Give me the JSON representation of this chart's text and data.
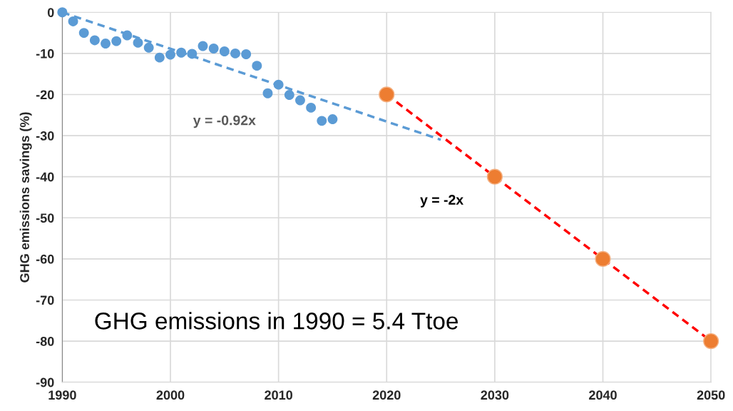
{
  "chart_data": {
    "type": "scatter",
    "ylabel": "GHG emissions savings (%)",
    "xlim": [
      1990,
      2050
    ],
    "xticks": [
      1990,
      2000,
      2010,
      2020,
      2030,
      2040,
      2050
    ],
    "ylim": [
      -90,
      0
    ],
    "yticks": [
      -90,
      -80,
      -70,
      -60,
      -50,
      -40,
      -30,
      -20,
      -10,
      0
    ],
    "grid": true,
    "legend": false,
    "series": [
      {
        "type": "line",
        "marker": "none",
        "color": "#5b9bd5",
        "line_style": "dashed",
        "x": [
          1990,
          2025
        ],
        "values": [
          0,
          -31
        ]
      },
      {
        "type": "line",
        "marker": "none",
        "color": "#ff0000",
        "line_style": "dashed",
        "x": [
          2020,
          2050
        ],
        "values": [
          -20,
          -80
        ]
      },
      {
        "marker": "circle",
        "color": "#5b9bd5",
        "x": [
          1990,
          1991,
          1992,
          1993,
          1994,
          1995,
          1996,
          1997,
          1998,
          1999,
          2000,
          2001,
          2002,
          2003,
          2004,
          2005,
          2006,
          2007,
          2008,
          2009,
          2010,
          2011,
          2012,
          2013,
          2014,
          2015
        ],
        "values": [
          0,
          -2.2,
          -5.0,
          -6.8,
          -7.6,
          -7.0,
          -5.6,
          -7.4,
          -8.6,
          -11.0,
          -10.3,
          -9.8,
          -10.1,
          -8.2,
          -8.8,
          -9.5,
          -10.0,
          -10.2,
          -13.0,
          -19.7,
          -17.6,
          -20.1,
          -21.4,
          -23.2,
          -26.4,
          -26.0
        ]
      },
      {
        "marker": "circle",
        "color": "#ed7d31",
        "x": [
          2020,
          2030,
          2040,
          2050
        ],
        "values": [
          -20,
          -40,
          -60,
          -80
        ]
      }
    ],
    "annotations": [
      "y = -0.92x",
      "y = -2x",
      "GHG emissions in 1990 = 5.4 Ttoe"
    ]
  }
}
